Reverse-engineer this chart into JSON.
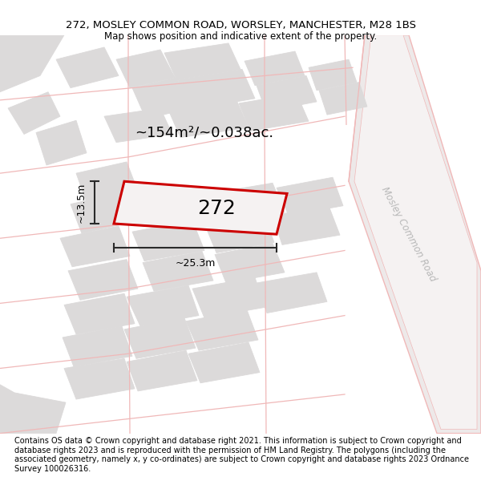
{
  "title": "272, MOSLEY COMMON ROAD, WORSLEY, MANCHESTER, M28 1BS",
  "subtitle": "Map shows position and indicative extent of the property.",
  "footer": "Contains OS data © Crown copyright and database right 2021. This information is subject to Crown copyright and database rights 2023 and is reproduced with the permission of HM Land Registry. The polygons (including the associated geometry, namely x, y co-ordinates) are subject to Crown copyright and database rights 2023 Ordnance Survey 100026316.",
  "area_label": "~154m²/~0.038ac.",
  "width_label": "~25.3m",
  "height_label": "~13.5m",
  "property_number": "272",
  "map_bg": "#f2f0f0",
  "road_line_color": "#f0b8b8",
  "building_fill": "#dcdada",
  "building_edge": "#dcdada",
  "highlight_edge": "#cc0000",
  "road_text_color": "#b8b8b8",
  "dim_line_color": "#2a2a2a",
  "street_label": "Mosley Common Road",
  "title_fontsize": 9.5,
  "subtitle_fontsize": 8.5,
  "footer_fontsize": 7.0
}
